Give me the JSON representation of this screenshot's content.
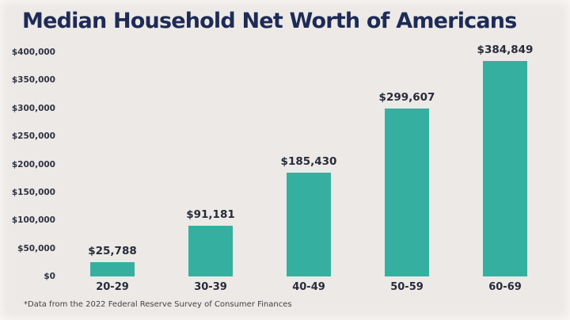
{
  "title": "Median Household Net Worth of Americans",
  "footnote": "*Data from the 2022 Federal Reserve Survey of Consumer Finances",
  "colors": {
    "background": "#EDE9E6",
    "bar": "#35B0A0",
    "title_text": "#1D2B56",
    "label_text": "#272C3A"
  },
  "chart_data": {
    "type": "bar",
    "title": "Median Household Net Worth of Americans",
    "categories": [
      "20-29",
      "30-39",
      "40-49",
      "50-59",
      "60-69"
    ],
    "values": [
      25788,
      91181,
      185430,
      299607,
      384849
    ],
    "value_labels": [
      "$25,788",
      "$91,181",
      "$185,430",
      "$299,607",
      "$384,849"
    ],
    "xlabel": "",
    "ylabel": "",
    "ylim": [
      0,
      400000
    ],
    "ytick_interval": 50000,
    "ytick_labels": [
      "$0",
      "$50,000",
      "$100,000",
      "$150,000",
      "$200,000",
      "$250,000",
      "$300,000",
      "$350,000",
      "$400,000"
    ],
    "grid": false,
    "legend": false,
    "annotation": "*Data from the 2022 Federal Reserve Survey of Consumer Finances"
  }
}
